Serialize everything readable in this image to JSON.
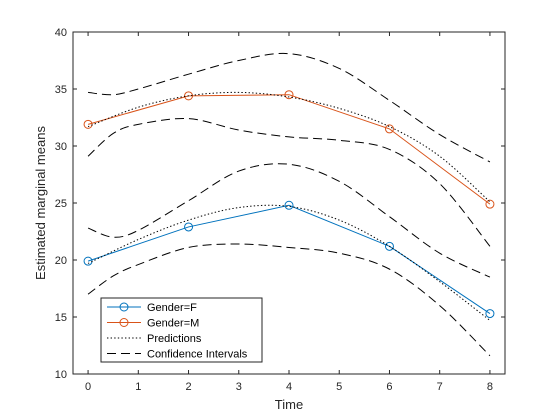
{
  "chart_data": {
    "type": "line",
    "xlabel": "Time",
    "ylabel": "Estimated marginal means",
    "xlim": [
      -0.3,
      8.3
    ],
    "ylim": [
      10,
      40
    ],
    "xticks": [
      0,
      1,
      2,
      3,
      4,
      5,
      6,
      7,
      8
    ],
    "yticks": [
      10,
      15,
      20,
      25,
      30,
      35,
      40
    ],
    "grid": false,
    "legend_position": "bottom-left",
    "series": [
      {
        "name": "Gender=F",
        "style": "solid-circle",
        "color": "#0072BD",
        "x": [
          0,
          2,
          4,
          6,
          8
        ],
        "y": [
          19.9,
          22.9,
          24.8,
          21.2,
          15.3
        ]
      },
      {
        "name": "Gender=M",
        "style": "solid-circle",
        "color": "#D95319",
        "x": [
          0,
          2,
          4,
          6,
          8
        ],
        "y": [
          31.9,
          34.4,
          34.5,
          31.5,
          24.9
        ]
      },
      {
        "name": "Predictions",
        "style": "dotted",
        "color": "#000000",
        "curves": [
          {
            "x": [
              0,
              1,
              2,
              3,
              4,
              5,
              6,
              7,
              8
            ],
            "y": [
              19.7,
              21.8,
              23.5,
              24.6,
              24.7,
              23.5,
              21.2,
              18.1,
              14.7
            ]
          },
          {
            "x": [
              0,
              1,
              2,
              3,
              4,
              5,
              6,
              7,
              8
            ],
            "y": [
              31.7,
              33.4,
              34.4,
              34.7,
              34.3,
              33.3,
              31.7,
              29.1,
              25.1
            ]
          }
        ]
      },
      {
        "name": "Confidence Intervals",
        "style": "dashed",
        "color": "#000000",
        "curves": [
          {
            "x": [
              0,
              0.5,
              1,
              2,
              3,
              4,
              5,
              6,
              7,
              8
            ],
            "y": [
              22.8,
              22.0,
              22.6,
              25.2,
              27.8,
              28.4,
              26.9,
              23.8,
              20.6,
              18.5
            ]
          },
          {
            "x": [
              0,
              0.5,
              1,
              2,
              3,
              4,
              5,
              6,
              7,
              8
            ],
            "y": [
              17.0,
              18.6,
              19.6,
              21.1,
              21.4,
              21.1,
              20.6,
              19.2,
              16.0,
              11.6
            ]
          },
          {
            "x": [
              0,
              0.5,
              1,
              2,
              3,
              4,
              5,
              6,
              7,
              8
            ],
            "y": [
              34.7,
              34.5,
              35.0,
              36.3,
              37.5,
              38.1,
              36.8,
              34.0,
              31.0,
              28.6
            ]
          },
          {
            "x": [
              0,
              0.5,
              1,
              2,
              3,
              4,
              5,
              6,
              7,
              8
            ],
            "y": [
              29.1,
              31.1,
              31.9,
              32.4,
              31.4,
              30.8,
              30.5,
              29.7,
              26.7,
              21.2
            ]
          }
        ]
      }
    ]
  }
}
